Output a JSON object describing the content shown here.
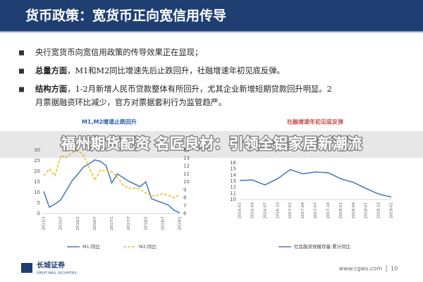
{
  "header": {
    "title": "货币政策：宽货币正向宽信用传导"
  },
  "bullets": [
    {
      "lines": [
        "央行宽货币向宽信用政策的传导效果正在显现；"
      ]
    },
    {
      "lead": "总量方面",
      "lines": [
        "，M1和M2同比增速先后止跌回升，社融增速年初见底反弹。"
      ]
    },
    {
      "lead": "结构方面",
      "lines": [
        "，1-2月新增人民币贷款整体有所回升，尤其企业新增短期贷款回升明显。2",
        "月票据融资环比减少，官方对票据套利行为监管趋严。"
      ]
    }
  ],
  "banner": "福州期货配资 名匠良材：引领全铝家居新潮流",
  "chart_data": [
    {
      "type": "line",
      "title": "M1,M2增速止跌回升",
      "title_color": "#2e5fa8",
      "categories": [
        "2015/1",
        null,
        null,
        "2015/7",
        null,
        null,
        "2016/1",
        null,
        null,
        "2016/7",
        null,
        null,
        "2017/1",
        null,
        null,
        "2017/7",
        null,
        null,
        "2018/1",
        null,
        null,
        "2018/7",
        null,
        null,
        "2019/1"
      ],
      "series": [
        {
          "name": "M1:同比",
          "color": "#4a7ebb",
          "axis": "y",
          "values": [
            10.5,
            3,
            4.5,
            6.5,
            11,
            15.5,
            18.6,
            22,
            23.5,
            25.4,
            24.7,
            22.7,
            14.5,
            18.8,
            17,
            15.3,
            14,
            12.7,
            15,
            7.1,
            6,
            5.1,
            4,
            1.5,
            0.4
          ]
        },
        {
          "name": "M2:同比",
          "color": "#f0c030",
          "dash": true,
          "axis": "y2",
          "values": [
            10.8,
            11.6,
            10.8,
            13.3,
            13.1,
            13.7,
            14,
            13.4,
            11.8,
            10.2,
            11.5,
            11.4,
            11.3,
            10.6,
            9.6,
            9.2,
            9.2,
            9.1,
            8.6,
            8.2,
            8.3,
            8.5,
            8.3,
            8,
            8.4
          ]
        }
      ],
      "ylim": [
        0,
        30
      ],
      "yticks": [
        0,
        5,
        10,
        15,
        20,
        25,
        30
      ],
      "y2lim": [
        6,
        14
      ],
      "y2ticks": [
        6,
        7,
        8,
        9,
        10,
        11,
        12,
        13,
        14
      ]
    },
    {
      "type": "line",
      "title": "社融增速年初见底反弹",
      "title_color": "#c0504d",
      "categories": [
        "2016-01",
        "2016-04",
        "2016-07",
        "2016-10",
        "2017-01",
        "2017-04",
        "2017-07",
        "2017-10",
        "2018-01",
        "2018-04",
        "2018-07",
        "2018-10",
        "2019-01"
      ],
      "series": [
        {
          "name": "社会融资规模存量:累计同比",
          "color": "#4a7ebb",
          "axis": "y",
          "values": [
            13.1,
            13.2,
            12.4,
            13.4,
            14.9,
            14.2,
            14.5,
            14.4,
            13.4,
            12.8,
            11.8,
            10.9,
            10.4
          ]
        }
      ],
      "ylim": [
        10,
        16
      ],
      "yticks": [
        10,
        11,
        12,
        13,
        14,
        15,
        16
      ]
    }
  ],
  "footer": {
    "logo": "长城证券",
    "logo_en": "GREAT WALL SECURITIES",
    "site": "www.cgws.com",
    "page": 10
  }
}
